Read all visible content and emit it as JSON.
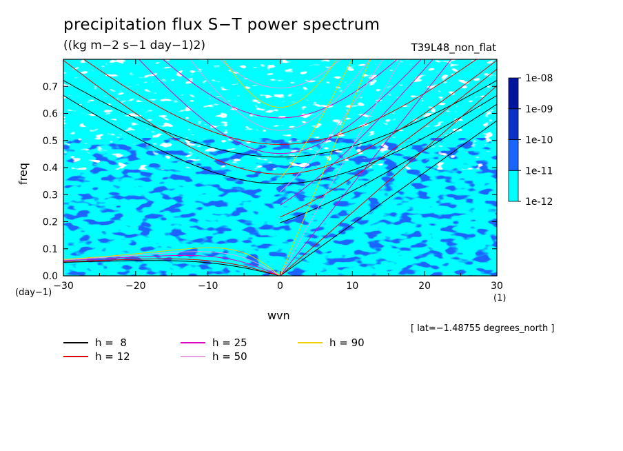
{
  "chart_data": {
    "type": "heatmap",
    "title": "precipitation flux S−T power spectrum",
    "units": "((kg m−2 s−1 day−1)2)",
    "run_label": "T39L48_non_flat",
    "xlabel": "wvn",
    "ylabel": "freq",
    "x_unit_label": "(1)",
    "y_unit_label": "(day−1)",
    "latitude_note": "[ lat=−1.48755 degrees_north ]",
    "xlim": [
      -30,
      30
    ],
    "ylim": [
      0.0,
      0.8
    ],
    "x_ticks": [
      -30,
      -20,
      -10,
      0,
      10,
      20,
      30
    ],
    "y_ticks": [
      0.0,
      0.1,
      0.2,
      0.3,
      0.4,
      0.5,
      0.6,
      0.7
    ],
    "color_levels": [
      {
        "label": "1e-12",
        "color": "#00ffff"
      },
      {
        "label": "1e-11",
        "color": "#1a64ff"
      },
      {
        "label": "1e-10",
        "color": "#0a32c8"
      },
      {
        "label": "1e-09",
        "color": "#0014a0"
      },
      {
        "label": "1e-08",
        "color": "#4010a0"
      }
    ],
    "colorbar_ticks": [
      "1e-12",
      "1e-11",
      "1e-10",
      "1e-09",
      "1e-08"
    ],
    "dispersion_series": [
      {
        "name": "h =  8",
        "h": 8,
        "color": "#000000"
      },
      {
        "name": "h = 12",
        "h": 12,
        "color": "#e00000"
      },
      {
        "name": "h = 25",
        "h": 25,
        "color": "#e000c0"
      },
      {
        "name": "h = 50",
        "h": 50,
        "color": "#e0a0e0"
      },
      {
        "name": "h = 90",
        "h": 90,
        "color": "#f0d000"
      }
    ]
  }
}
